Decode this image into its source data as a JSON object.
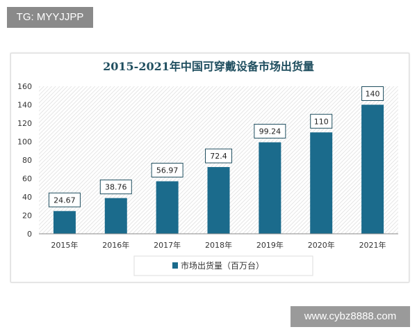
{
  "watermark_top": "TG: MYYJJPP",
  "watermark_bottom": "www.cybz8888.com",
  "chart_data": {
    "type": "bar",
    "title": "2015-2021年中国可穿戴设备市场出货量",
    "categories": [
      "2015年",
      "2016年",
      "2017年",
      "2018年",
      "2019年",
      "2020年",
      "2021年"
    ],
    "series": [
      {
        "name": "市场出货量（百万台）",
        "values": [
          24.67,
          38.76,
          56.97,
          72.4,
          99.24,
          110,
          140
        ],
        "labels": [
          "24.67",
          "38.76",
          "56.97",
          "72.4",
          "99.24",
          "110",
          "140"
        ]
      }
    ],
    "ylim": [
      0,
      160
    ],
    "yticks": [
      "0",
      "20",
      "40",
      "60",
      "80",
      "100",
      "120",
      "140",
      "160"
    ],
    "xlabel": "",
    "ylabel": "",
    "legend_position": "bottom",
    "colors": {
      "bar": "#1b6b8c",
      "title": "#1f4e5f"
    }
  }
}
